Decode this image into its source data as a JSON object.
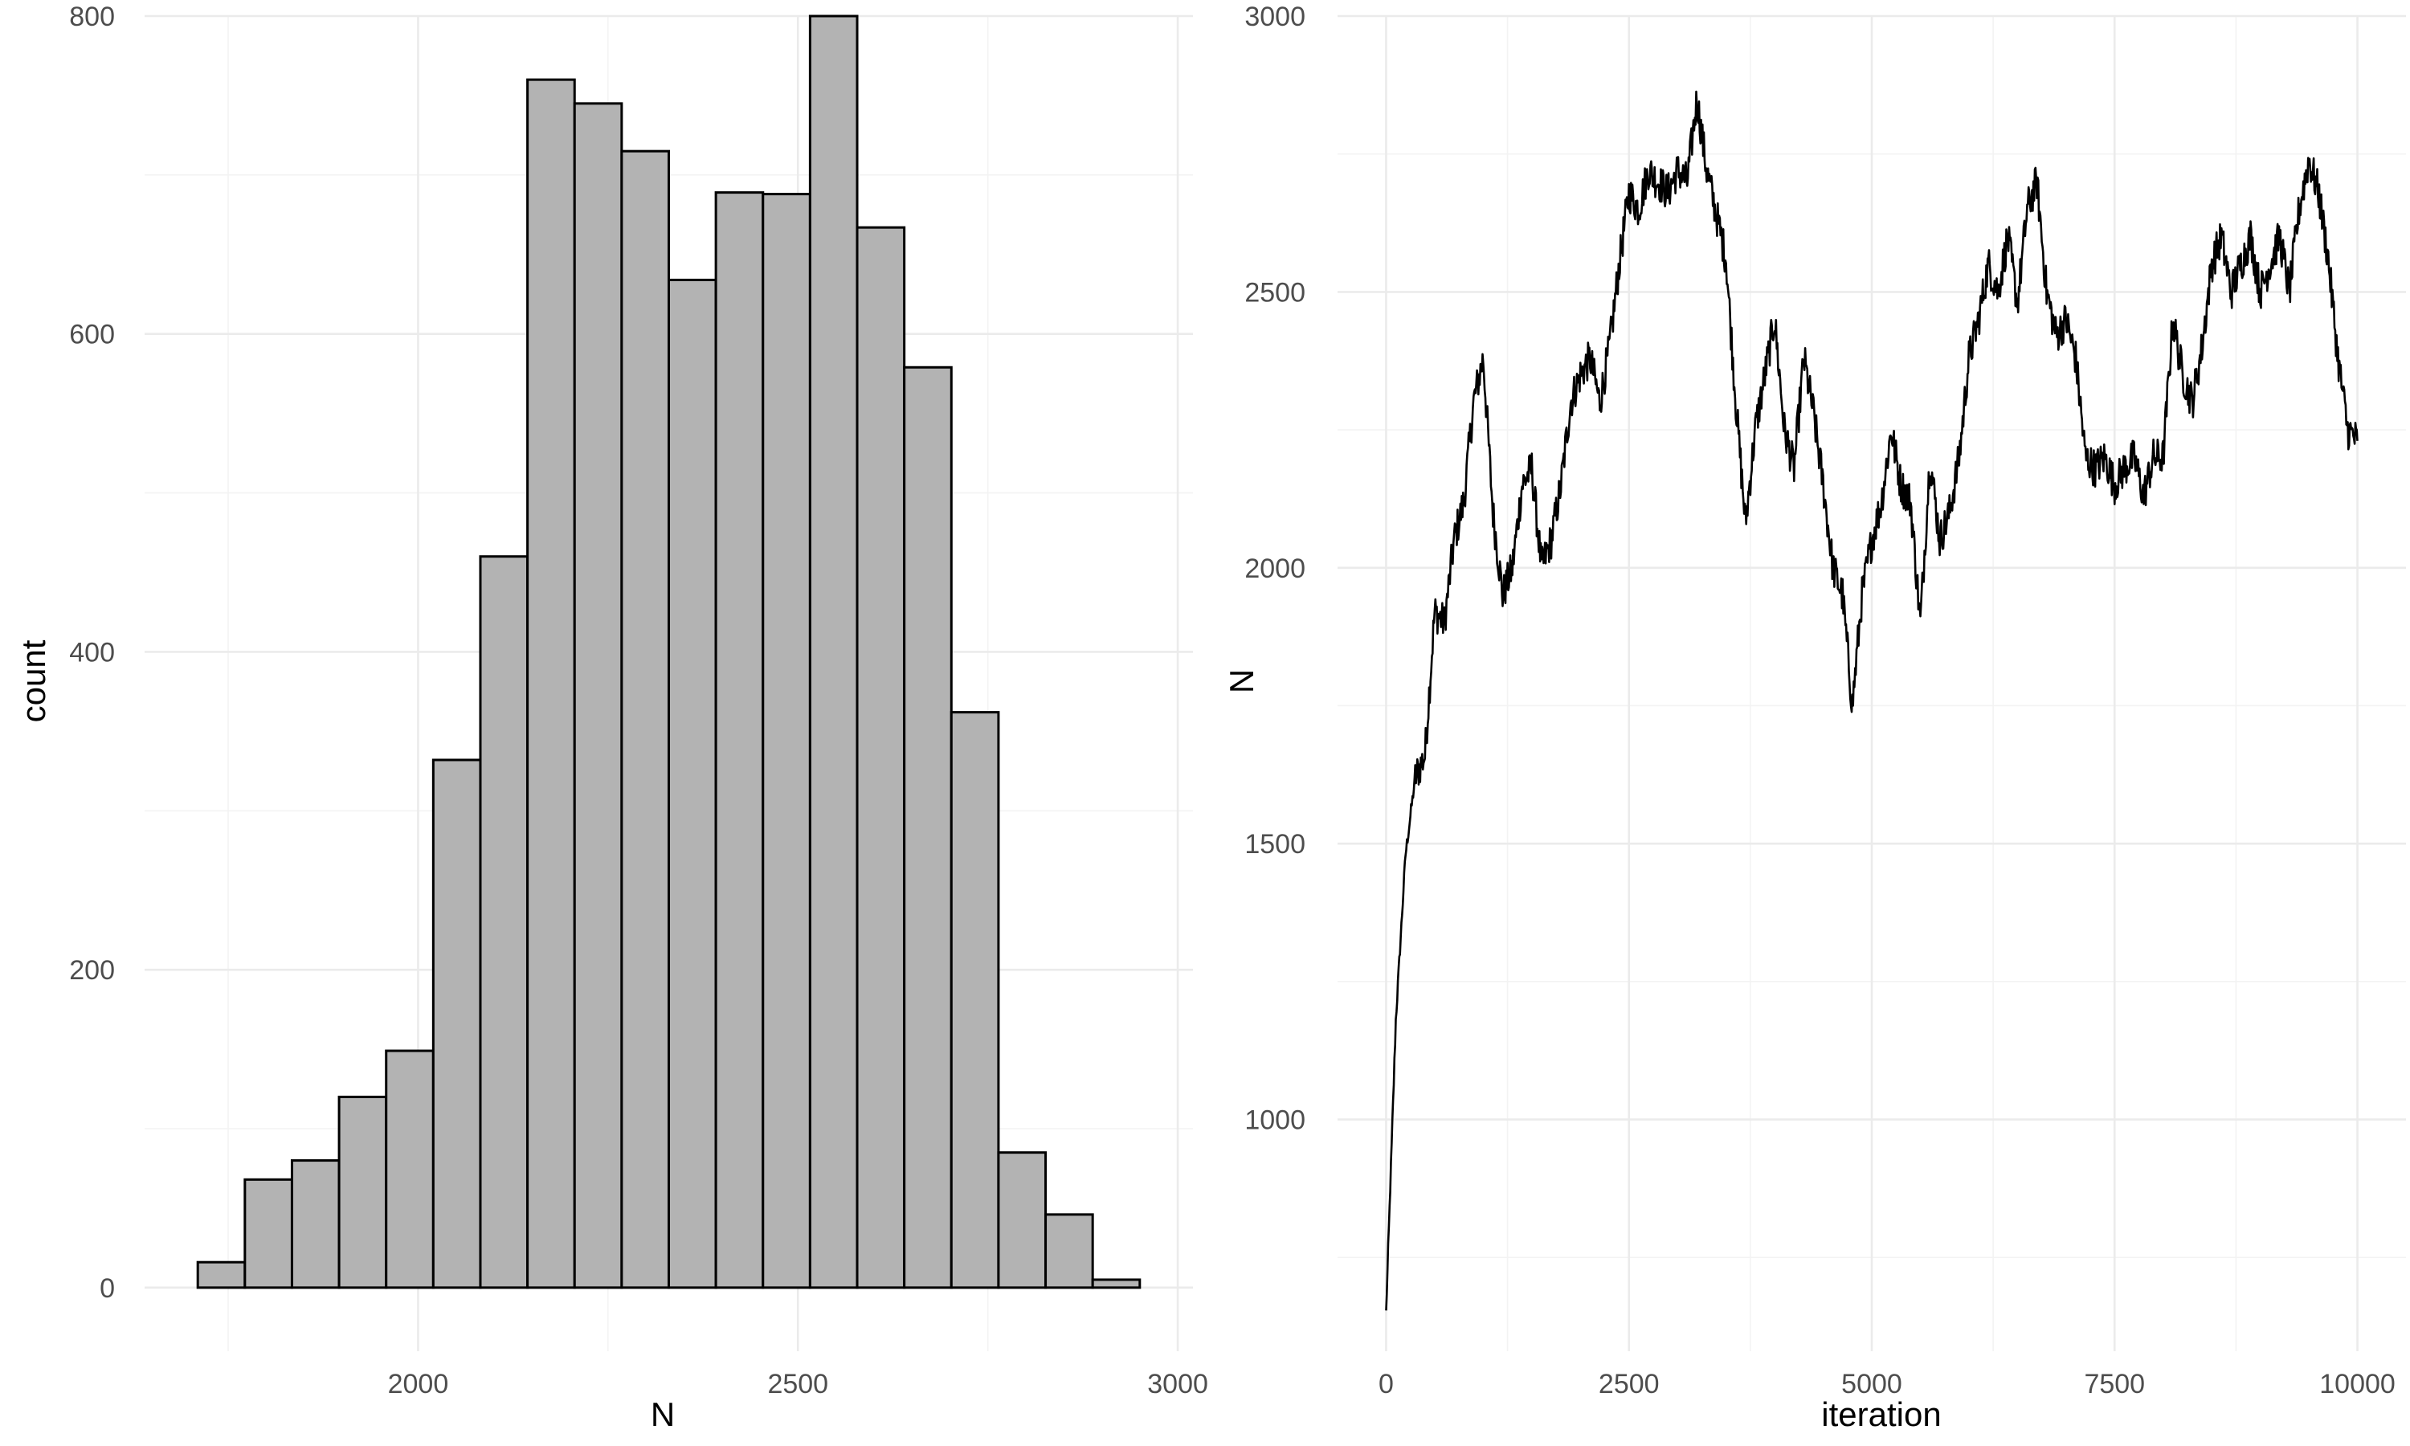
{
  "chart_data": [
    {
      "type": "bar",
      "subtype": "histogram",
      "xlabel": "N",
      "ylabel": "count",
      "xlim": [
        1640,
        3020
      ],
      "ylim": [
        -40,
        800
      ],
      "x_ticks": [
        2000,
        2500,
        3000
      ],
      "y_ticks": [
        0,
        200,
        400,
        600,
        800
      ],
      "grid": true,
      "bar_fill": "#b3b3b3",
      "bar_stroke": "#000000",
      "bins": [
        {
          "x0": 1710,
          "x1": 1772,
          "count": 16
        },
        {
          "x0": 1772,
          "x1": 1834,
          "count": 68
        },
        {
          "x0": 1834,
          "x1": 1896,
          "count": 80
        },
        {
          "x0": 1896,
          "x1": 1958,
          "count": 120
        },
        {
          "x0": 1958,
          "x1": 2020,
          "count": 149
        },
        {
          "x0": 2020,
          "x1": 2082,
          "count": 332
        },
        {
          "x0": 2082,
          "x1": 2144,
          "count": 460
        },
        {
          "x0": 2144,
          "x1": 2206,
          "count": 760
        },
        {
          "x0": 2206,
          "x1": 2268,
          "count": 745
        },
        {
          "x0": 2268,
          "x1": 2330,
          "count": 715
        },
        {
          "x0": 2330,
          "x1": 2392,
          "count": 634
        },
        {
          "x0": 2392,
          "x1": 2454,
          "count": 689
        },
        {
          "x0": 2454,
          "x1": 2516,
          "count": 688
        },
        {
          "x0": 2516,
          "x1": 2578,
          "count": 800
        },
        {
          "x0": 2578,
          "x1": 2640,
          "count": 667
        },
        {
          "x0": 2640,
          "x1": 2702,
          "count": 579
        },
        {
          "x0": 2702,
          "x1": 2764,
          "count": 362
        },
        {
          "x0": 2764,
          "x1": 2826,
          "count": 85
        },
        {
          "x0": 2826,
          "x1": 2888,
          "count": 46
        },
        {
          "x0": 2888,
          "x1": 2950,
          "count": 5
        }
      ]
    },
    {
      "type": "line",
      "xlabel": "iteration",
      "ylabel": "N",
      "xlim": [
        -500,
        10500
      ],
      "ylim": [
        580,
        3000
      ],
      "x_ticks": [
        0,
        2500,
        5000,
        7500,
        10000
      ],
      "y_ticks": [
        1000,
        1500,
        2000,
        2500,
        3000
      ],
      "grid": true,
      "line_color": "#000000",
      "noise": 35,
      "x": [
        0,
        100,
        200,
        300,
        400,
        500,
        600,
        700,
        800,
        900,
        1000,
        1100,
        1200,
        1300,
        1400,
        1500,
        1600,
        1700,
        1800,
        1900,
        2000,
        2100,
        2200,
        2300,
        2400,
        2500,
        2600,
        2700,
        2800,
        2900,
        3000,
        3100,
        3200,
        3300,
        3400,
        3500,
        3600,
        3700,
        3800,
        3900,
        4000,
        4100,
        4200,
        4300,
        4400,
        4500,
        4600,
        4700,
        4800,
        4900,
        5000,
        5100,
        5200,
        5300,
        5400,
        5500,
        5600,
        5700,
        5800,
        5900,
        6000,
        6100,
        6200,
        6300,
        6400,
        6500,
        6600,
        6700,
        6800,
        6900,
        7000,
        7100,
        7200,
        7300,
        7400,
        7500,
        7600,
        7700,
        7800,
        7900,
        8000,
        8100,
        8200,
        8300,
        8400,
        8500,
        8600,
        8700,
        8800,
        8900,
        9000,
        9100,
        9200,
        9300,
        9400,
        9500,
        9600,
        9700,
        9800,
        9900,
        10000
      ],
      "y": [
        650,
        1180,
        1480,
        1620,
        1660,
        1920,
        1900,
        2050,
        2120,
        2300,
        2380,
        2100,
        1950,
        2000,
        2150,
        2180,
        2000,
        2050,
        2150,
        2300,
        2350,
        2380,
        2300,
        2400,
        2550,
        2680,
        2650,
        2720,
        2700,
        2680,
        2720,
        2700,
        2850,
        2720,
        2640,
        2560,
        2300,
        2080,
        2250,
        2350,
        2450,
        2250,
        2180,
        2380,
        2280,
        2150,
        2000,
        1950,
        1750,
        1950,
        2050,
        2120,
        2250,
        2150,
        2120,
        1900,
        2200,
        2050,
        2100,
        2200,
        2380,
        2450,
        2550,
        2500,
        2600,
        2480,
        2650,
        2700,
        2500,
        2420,
        2450,
        2380,
        2200,
        2180,
        2200,
        2150,
        2180,
        2200,
        2130,
        2200,
        2200,
        2450,
        2350,
        2300,
        2400,
        2550,
        2600,
        2500,
        2550,
        2600,
        2500,
        2550,
        2600,
        2500,
        2650,
        2740,
        2680,
        2560,
        2380,
        2250,
        2230
      ]
    }
  ]
}
